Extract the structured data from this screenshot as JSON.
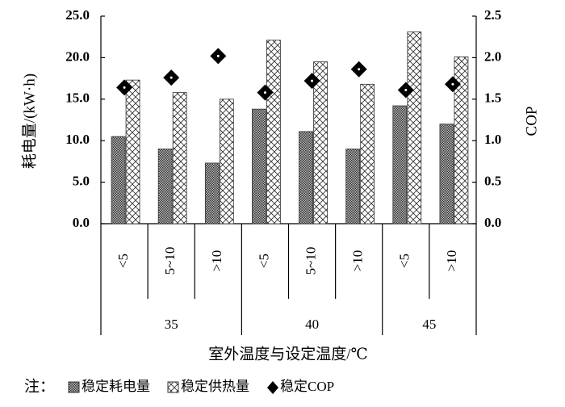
{
  "chart_data": {
    "type": "bar",
    "y_label": "耗电量/(kW·h)",
    "y2_label": "COP",
    "x_label": "室外温度与设定温度/℃",
    "legend_prefix": "注：",
    "groups": [
      {
        "label": "35",
        "categories": [
          "<5",
          "5~10",
          ">10"
        ]
      },
      {
        "label": "40",
        "categories": [
          "<5",
          "5~10",
          ">10"
        ]
      },
      {
        "label": "45",
        "categories": [
          "<5",
          ">10"
        ]
      }
    ],
    "series": [
      {
        "name": "稳定耗电量",
        "color": "#333333",
        "pattern": "dots",
        "values": [
          10.5,
          9.0,
          7.3,
          13.8,
          11.1,
          9.0,
          14.2,
          12.0
        ]
      },
      {
        "name": "稳定供热量",
        "color": "#333333",
        "pattern": "hatch",
        "values": [
          17.3,
          15.8,
          15.0,
          22.1,
          19.5,
          16.8,
          23.1,
          20.1
        ]
      },
      {
        "name": "稳定COP",
        "color": "#000000",
        "type": "scatter",
        "marker": "diamond",
        "axis": "y2",
        "values": [
          1.64,
          1.76,
          2.02,
          1.58,
          1.72,
          1.86,
          1.61,
          1.68
        ]
      }
    ],
    "ylim": [
      0,
      25
    ],
    "yticks": [
      {
        "value": 0,
        "label": "0.0"
      },
      {
        "value": 5,
        "label": "5.0"
      },
      {
        "value": 10,
        "label": "10.0"
      },
      {
        "value": 15,
        "label": "15.0"
      },
      {
        "value": 20,
        "label": "20.0"
      },
      {
        "value": 25,
        "label": "25.0"
      }
    ],
    "y2lim": [
      0,
      2.5
    ],
    "y2ticks": [
      {
        "value": 0,
        "label": "0.0"
      },
      {
        "value": 0.5,
        "label": "0.5"
      },
      {
        "value": 1,
        "label": "1.0"
      },
      {
        "value": 1.5,
        "label": "1.5"
      },
      {
        "value": 2,
        "label": "2.0"
      },
      {
        "value": 2.5,
        "label": "2.5"
      }
    ]
  }
}
